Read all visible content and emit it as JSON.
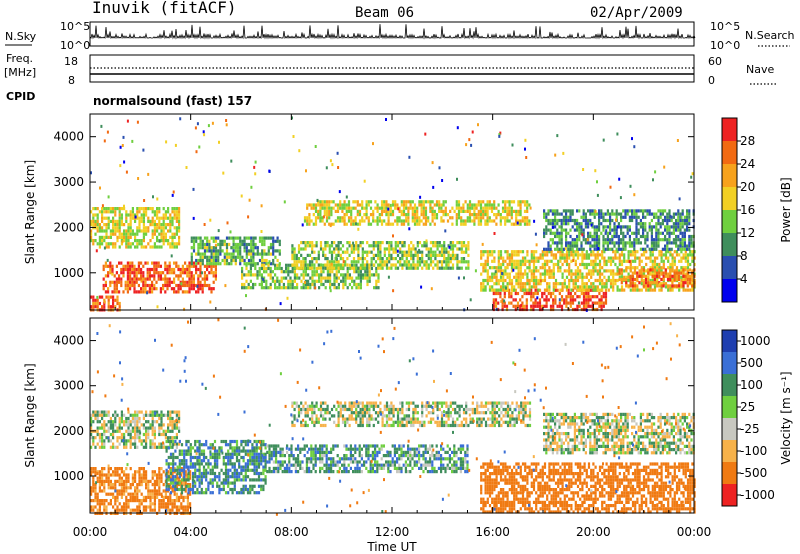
{
  "header": {
    "station": "Inuvik (fitACF)",
    "beam": "Beam 06",
    "date": "02/Apr/2009"
  },
  "top_panel": {
    "left_label": "N.Sky",
    "right_label": "N.Search",
    "left_ticks": [
      "10^5",
      "10^0"
    ],
    "right_ticks": [
      "10^5",
      "10^0"
    ]
  },
  "freq_panel": {
    "left_label_line1": "Freq.",
    "left_label_line2": "[MHz]",
    "right_label": "Nave",
    "left_ticks": [
      "18",
      "8"
    ],
    "right_ticks": [
      "60",
      "0"
    ]
  },
  "cpid": {
    "label": "CPID",
    "program": "normalsound (fast) 157"
  },
  "chart_data": [
    {
      "type": "heatmap",
      "title": "",
      "xlabel": "",
      "ylabel": "Slant Range [km]",
      "x_ticks": [
        "00:00",
        "04:00",
        "08:00",
        "12:00",
        "16:00",
        "20:00",
        "00:00"
      ],
      "xlim_hours": [
        0,
        24
      ],
      "ylim": [
        180,
        4500
      ],
      "y_ticks": [
        1000,
        2000,
        3000,
        4000
      ],
      "colorbar_label": "Power [dB]",
      "colorbar_ticks": [
        "4",
        "8",
        "12",
        "16",
        "20",
        "24",
        "28"
      ],
      "colorbar_colors": [
        "#0000ee",
        "#2a4fb0",
        "#3f8e5c",
        "#6fcf3f",
        "#f2d024",
        "#f7a21c",
        "#f26a12",
        "#ee2222"
      ],
      "bands": [
        {
          "from": 0.0,
          "to": 1.2,
          "range": [
            180,
            500
          ],
          "value": 26
        },
        {
          "from": 0.5,
          "to": 5.0,
          "range": [
            550,
            1250
          ],
          "value": 27
        },
        {
          "from": 0.0,
          "to": 3.5,
          "range": [
            1600,
            2450
          ],
          "value": 17
        },
        {
          "from": 4.0,
          "to": 7.5,
          "range": [
            1200,
            1800
          ],
          "value": 12
        },
        {
          "from": 6.0,
          "to": 11.5,
          "range": [
            700,
            1200
          ],
          "value": 14
        },
        {
          "from": 8.0,
          "to": 15.0,
          "range": [
            1100,
            1700
          ],
          "value": 15
        },
        {
          "from": 8.5,
          "to": 17.5,
          "range": [
            2100,
            2600
          ],
          "value": 18
        },
        {
          "from": 16.0,
          "to": 20.5,
          "range": [
            180,
            650
          ],
          "value": 28
        },
        {
          "from": 15.5,
          "to": 24.0,
          "range": [
            600,
            1500
          ],
          "value": 18
        },
        {
          "from": 18.0,
          "to": 24.0,
          "range": [
            1500,
            2400
          ],
          "value": 10
        },
        {
          "from": 21.0,
          "to": 24.0,
          "range": [
            700,
            1100
          ],
          "value": 25
        }
      ]
    },
    {
      "type": "heatmap",
      "title": "",
      "xlabel": "Time UT",
      "ylabel": "Slant Range [km]",
      "x_ticks": [
        "00:00",
        "04:00",
        "08:00",
        "12:00",
        "16:00",
        "20:00",
        "00:00"
      ],
      "xlim_hours": [
        0,
        24
      ],
      "ylim": [
        180,
        4500
      ],
      "y_ticks": [
        1000,
        2000,
        3000,
        4000
      ],
      "colorbar_label": "Velocity [m s⁻¹]",
      "colorbar_ticks": [
        "1000",
        "500",
        "100",
        "25",
        "-25",
        "-100",
        "-500",
        "-1000"
      ],
      "colorbar_colors": [
        "#1f3fb0",
        "#3a6fd6",
        "#3f8e5c",
        "#6fcf3f",
        "#c8c8c0",
        "#f7b24a",
        "#f07a12",
        "#ee2222"
      ],
      "bands": [
        {
          "from": 0.0,
          "to": 4.0,
          "range": [
            180,
            1200
          ],
          "value": -150
        },
        {
          "from": 0.0,
          "to": 3.5,
          "range": [
            1600,
            2450
          ],
          "value": 0
        },
        {
          "from": 3.0,
          "to": 7.0,
          "range": [
            600,
            1800
          ],
          "value": 80
        },
        {
          "from": 7.0,
          "to": 15.0,
          "range": [
            1100,
            1700
          ],
          "value": 60
        },
        {
          "from": 8.0,
          "to": 17.5,
          "range": [
            2100,
            2650
          ],
          "value": 0
        },
        {
          "from": 15.5,
          "to": 24.0,
          "range": [
            180,
            1300
          ],
          "value": -200
        },
        {
          "from": 18.0,
          "to": 24.0,
          "range": [
            1500,
            2400
          ],
          "value": 0
        }
      ]
    }
  ]
}
